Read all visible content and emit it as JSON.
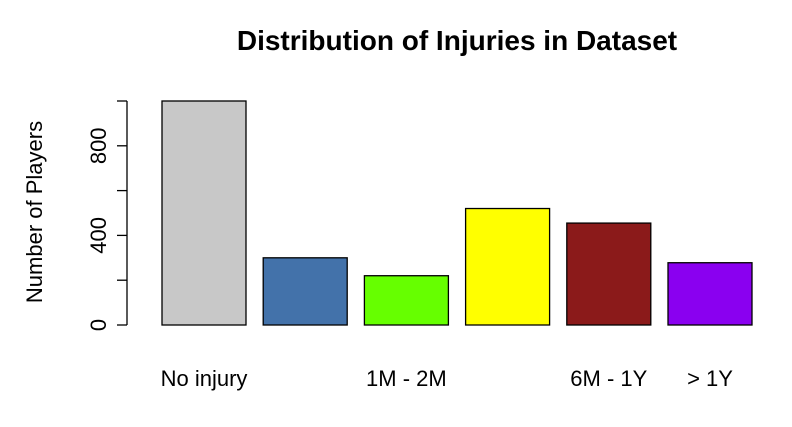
{
  "chart_data": {
    "type": "bar",
    "title": "Distribution of Injuries in Dataset",
    "xlabel": "",
    "ylabel": "Number of Players",
    "categories": [
      "No injury",
      "",
      "1M - 2M",
      "",
      "6M - 1Y",
      "> 1Y"
    ],
    "values": [
      1000,
      300,
      220,
      520,
      455,
      278
    ],
    "colors": [
      "#c8c8c8",
      "#4372aa",
      "#66ff00",
      "#ffff00",
      "#8b1a1a",
      "#8a00f0"
    ],
    "ylim": [
      0,
      1000
    ],
    "yticks": [
      0,
      200,
      400,
      600,
      800,
      1000
    ],
    "ytick_labels": [
      "0",
      "",
      "400",
      "",
      "800",
      ""
    ],
    "grid": false,
    "legend": "none"
  }
}
